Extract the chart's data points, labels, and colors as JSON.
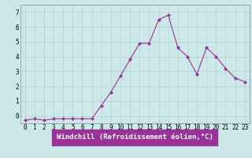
{
  "x": [
    0,
    1,
    2,
    3,
    4,
    5,
    6,
    7,
    8,
    9,
    10,
    11,
    12,
    13,
    14,
    15,
    16,
    17,
    18,
    19,
    20,
    21,
    22,
    23
  ],
  "y": [
    -0.3,
    -0.2,
    -0.3,
    -0.2,
    -0.2,
    -0.2,
    -0.2,
    -0.2,
    0.7,
    1.6,
    2.7,
    3.8,
    4.9,
    4.9,
    6.5,
    6.8,
    4.6,
    4.0,
    2.8,
    4.6,
    4.0,
    3.2,
    2.55,
    2.3
  ],
  "line_color": "#993399",
  "marker": "D",
  "marker_size": 2,
  "bg_color": "#cce8e8",
  "grid_color": "#aacccc",
  "xlabel": "Windchill (Refroidissement éolien,°C)",
  "ylim": [
    -0.5,
    7.5
  ],
  "xlim": [
    -0.5,
    23.5
  ],
  "yticks": [
    0,
    1,
    2,
    3,
    4,
    5,
    6,
    7
  ],
  "xlabel_fontsize": 6.5,
  "tick_fontsize": 5.5,
  "xlabel_bg": "#993399",
  "xlabel_fg": "white"
}
